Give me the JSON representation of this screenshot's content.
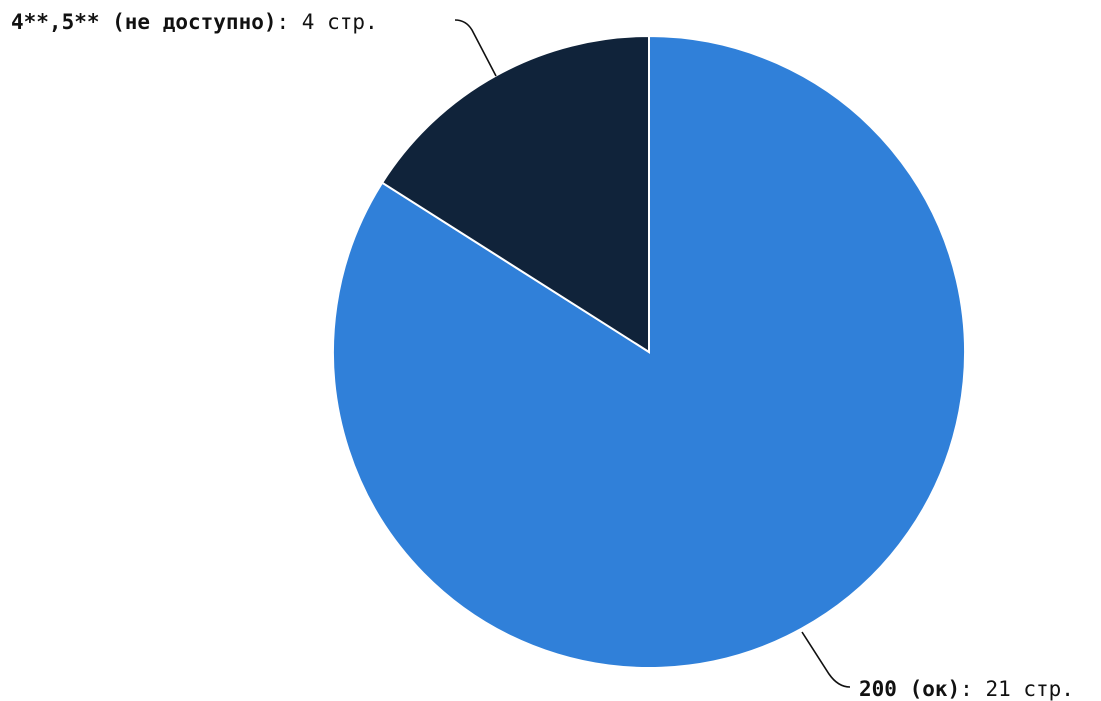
{
  "chart_data": {
    "type": "pie",
    "slices": [
      {
        "category": "200 (ок)",
        "value": 21,
        "value_text": ": 21 стр.",
        "color": "#3080d9"
      },
      {
        "category": "4**,5** (не доступно)",
        "value": 4,
        "value_text": ": 4 стр.",
        "color": "#10233a"
      }
    ],
    "start_angle_deg": 0,
    "direction": "clockwise",
    "legend": "none"
  }
}
